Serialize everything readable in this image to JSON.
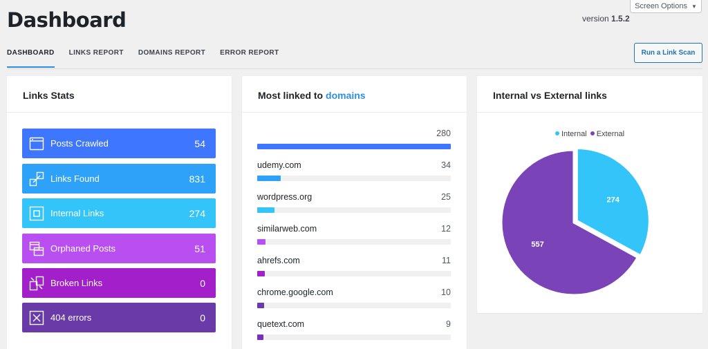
{
  "header": {
    "title": "Dashboard",
    "version_prefix": "version",
    "version_number": "1.5.2",
    "screen_options": "Screen Options"
  },
  "tabs": [
    {
      "label": "DASHBOARD",
      "active": true
    },
    {
      "label": "LINKS REPORT",
      "active": false
    },
    {
      "label": "DOMAINS REPORT",
      "active": false
    },
    {
      "label": "ERROR REPORT",
      "active": false
    }
  ],
  "run_button": "Run a Link Scan",
  "links_stats": {
    "title": "Links Stats",
    "items": [
      {
        "label": "Posts Crawled",
        "value": "54",
        "color": "#3f76ff",
        "icon": "window-icon"
      },
      {
        "label": "Links Found",
        "value": "831",
        "color": "#2ea2f8",
        "icon": "link-expand-icon"
      },
      {
        "label": "Internal Links",
        "value": "274",
        "color": "#33c4f9",
        "icon": "internal-box-icon"
      },
      {
        "label": "Orphaned Posts",
        "value": "51",
        "color": "#b94ff0",
        "icon": "stacked-windows-icon"
      },
      {
        "label": "Broken Links",
        "value": "0",
        "color": "#a21fc9",
        "icon": "broken-link-icon"
      },
      {
        "label": "404 errors",
        "value": "0",
        "color": "#6a3ba8",
        "icon": "error-x-icon"
      }
    ]
  },
  "domains": {
    "title_prefix": "Most linked to",
    "title_link": "domains",
    "max": 280,
    "rows": [
      {
        "name": "",
        "count": "280",
        "value": 280,
        "color": "#3f76ff"
      },
      {
        "name": "udemy.com",
        "count": "34",
        "value": 34,
        "color": "#2ea2f8"
      },
      {
        "name": "wordpress.org",
        "count": "25",
        "value": 25,
        "color": "#33c4f9"
      },
      {
        "name": "similarweb.com",
        "count": "12",
        "value": 12,
        "color": "#b94ff0"
      },
      {
        "name": "ahrefs.com",
        "count": "11",
        "value": 11,
        "color": "#a21fc9"
      },
      {
        "name": "chrome.google.com",
        "count": "10",
        "value": 10,
        "color": "#6a3ba8"
      },
      {
        "name": "quetext.com",
        "count": "9",
        "value": 9,
        "color": "#7a2fb8"
      }
    ]
  },
  "pie_card": {
    "title": "Internal vs External links"
  },
  "chart_data": {
    "type": "pie",
    "title": "Internal vs External links",
    "legend_position": "top",
    "series": [
      {
        "name": "Internal",
        "value": 274,
        "color": "#33c4f9"
      },
      {
        "name": "External",
        "value": 557,
        "color": "#7a44b8"
      }
    ]
  }
}
